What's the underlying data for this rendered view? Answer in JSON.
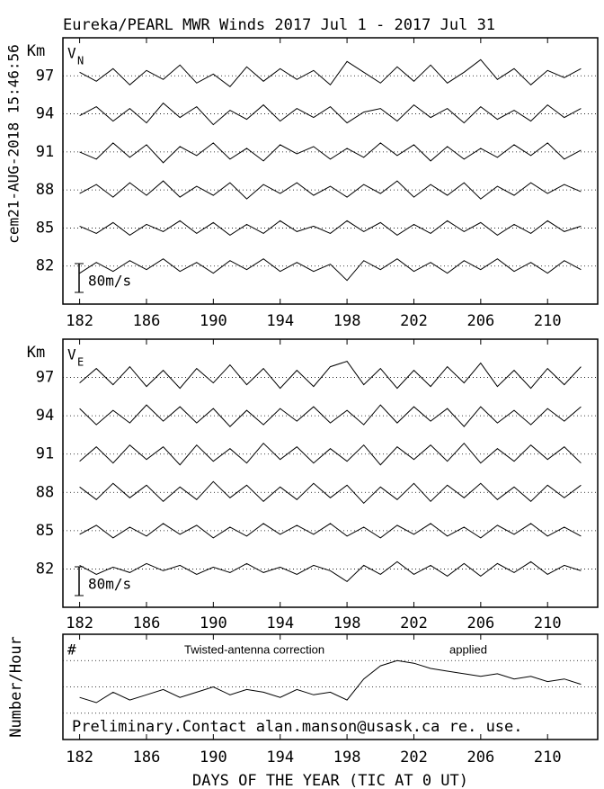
{
  "chart_data": [
    {
      "type": "line",
      "title": "Eureka/PEARL MWR Winds 2017 Jul  1 - 2017 Jul 31",
      "side_label": "cem21-AUG-2018 15:46:56",
      "ylabel": "Km",
      "label": "V",
      "label_sub": "N",
      "scale_bar": {
        "value": 80,
        "label": "80m/s"
      },
      "xlim": [
        181,
        213
      ],
      "xticks": [
        182,
        186,
        190,
        194,
        198,
        202,
        206,
        210
      ],
      "ylim": [
        79,
        100
      ],
      "yticks": [
        82,
        85,
        88,
        91,
        94,
        97
      ],
      "grid": true,
      "x": [
        182,
        183,
        184,
        185,
        186,
        187,
        188,
        189,
        190,
        191,
        192,
        193,
        194,
        195,
        196,
        197,
        198,
        199,
        200,
        201,
        202,
        203,
        204,
        205,
        206,
        207,
        208,
        209,
        210,
        211,
        212
      ],
      "series": [
        {
          "altitude": 97,
          "color": "#000000",
          "values": [
            10,
            -15,
            20,
            -25,
            15,
            -10,
            30,
            -20,
            5,
            -30,
            25,
            -15,
            20,
            -10,
            15,
            -25,
            40,
            10,
            -20,
            25,
            -15,
            30,
            -20,
            10,
            45,
            -10,
            20,
            -25,
            15,
            -5,
            20
          ]
        },
        {
          "altitude": 94,
          "color": "#000000",
          "values": [
            -5,
            20,
            -20,
            15,
            -25,
            30,
            -10,
            20,
            -30,
            10,
            -15,
            25,
            -20,
            15,
            -10,
            20,
            -25,
            5,
            15,
            -20,
            25,
            -10,
            15,
            -25,
            20,
            -15,
            10,
            -20,
            25,
            -10,
            15
          ]
        },
        {
          "altitude": 91,
          "color": "#000000",
          "values": [
            0,
            -20,
            25,
            -15,
            20,
            -30,
            15,
            -10,
            25,
            -20,
            10,
            -25,
            20,
            -5,
            15,
            -20,
            10,
            -15,
            25,
            -10,
            20,
            -25,
            15,
            -20,
            10,
            -15,
            20,
            -10,
            25,
            -20,
            5
          ]
        },
        {
          "altitude": 88,
          "color": "#000000",
          "values": [
            -10,
            15,
            -20,
            20,
            -15,
            25,
            -20,
            10,
            -15,
            20,
            -25,
            15,
            -10,
            20,
            -15,
            10,
            -20,
            15,
            -10,
            25,
            -20,
            15,
            -15,
            20,
            -25,
            10,
            -15,
            20,
            -10,
            15,
            -5
          ]
        },
        {
          "altitude": 85,
          "color": "#000000",
          "values": [
            5,
            -15,
            15,
            -20,
            10,
            -10,
            20,
            -15,
            15,
            -20,
            10,
            -15,
            20,
            -10,
            5,
            -15,
            20,
            -10,
            15,
            -20,
            10,
            -15,
            20,
            -10,
            15,
            -20,
            10,
            -15,
            20,
            -10,
            5
          ]
        },
        {
          "altitude": 82,
          "color": "#000000",
          "values": [
            -20,
            10,
            -15,
            15,
            -10,
            20,
            -15,
            10,
            -20,
            15,
            -10,
            20,
            -15,
            10,
            -15,
            5,
            -40,
            15,
            -10,
            20,
            -15,
            10,
            -20,
            15,
            -10,
            20,
            -15,
            10,
            -20,
            15,
            -10
          ]
        }
      ]
    },
    {
      "type": "line",
      "ylabel": "Km",
      "label": "V",
      "label_sub": "E",
      "scale_bar": {
        "value": 80,
        "label": "80m/s"
      },
      "xlim": [
        181,
        213
      ],
      "xticks": [
        182,
        186,
        190,
        194,
        198,
        202,
        206,
        210
      ],
      "ylim": [
        79,
        100
      ],
      "yticks": [
        82,
        85,
        88,
        91,
        94,
        97
      ],
      "grid": true,
      "x": [
        182,
        183,
        184,
        185,
        186,
        187,
        188,
        189,
        190,
        191,
        192,
        193,
        194,
        195,
        196,
        197,
        198,
        199,
        200,
        201,
        202,
        203,
        204,
        205,
        206,
        207,
        208,
        209,
        210,
        211,
        212
      ],
      "series": [
        {
          "altitude": 97,
          "color": "#000000",
          "values": [
            -15,
            25,
            -20,
            30,
            -25,
            20,
            -30,
            25,
            -15,
            35,
            -20,
            25,
            -30,
            20,
            -25,
            30,
            45,
            -20,
            25,
            -30,
            20,
            -25,
            30,
            -15,
            40,
            -25,
            20,
            -30,
            25,
            -20,
            30
          ]
        },
        {
          "altitude": 94,
          "color": "#000000",
          "values": [
            20,
            -25,
            15,
            -20,
            30,
            -15,
            25,
            -20,
            20,
            -30,
            15,
            -25,
            20,
            -15,
            25,
            -20,
            15,
            -25,
            30,
            -20,
            25,
            -15,
            20,
            -30,
            25,
            -20,
            15,
            -25,
            20,
            -15,
            25
          ]
        },
        {
          "altitude": 91,
          "color": "#000000",
          "values": [
            -20,
            20,
            -25,
            25,
            -15,
            20,
            -30,
            25,
            -20,
            15,
            -25,
            30,
            -15,
            20,
            -25,
            15,
            -20,
            25,
            -30,
            20,
            -15,
            25,
            -20,
            30,
            -25,
            15,
            -20,
            25,
            -15,
            20,
            -25
          ]
        },
        {
          "altitude": 88,
          "color": "#000000",
          "values": [
            15,
            -20,
            25,
            -15,
            20,
            -25,
            15,
            -20,
            30,
            -15,
            20,
            -25,
            15,
            -20,
            25,
            -15,
            20,
            -30,
            15,
            -20,
            25,
            -25,
            20,
            -15,
            25,
            -20,
            15,
            -25,
            20,
            -15,
            20
          ]
        },
        {
          "altitude": 85,
          "color": "#000000",
          "values": [
            -10,
            15,
            -20,
            10,
            -15,
            20,
            -10,
            15,
            -20,
            10,
            -15,
            20,
            -10,
            15,
            -10,
            20,
            -15,
            10,
            -20,
            15,
            -10,
            20,
            -15,
            10,
            -20,
            15,
            -10,
            20,
            -15,
            10,
            -15
          ]
        },
        {
          "altitude": 82,
          "color": "#000000",
          "values": [
            10,
            -15,
            5,
            -10,
            15,
            -5,
            10,
            -15,
            5,
            -10,
            15,
            -10,
            5,
            -15,
            10,
            -5,
            -35,
            10,
            -15,
            20,
            -15,
            10,
            -20,
            15,
            -20,
            15,
            -10,
            20,
            -15,
            10,
            -5
          ]
        }
      ]
    },
    {
      "type": "line",
      "ylabel": "Number/Hour",
      "label": "#",
      "annotations": [
        "Twisted-antenna correction",
        "applied"
      ],
      "note": "Preliminary.Contact alan.manson@usask.ca re. use.",
      "xlabel": "DAYS OF THE YEAR (TIC AT 0 UT)",
      "xlim": [
        181,
        213
      ],
      "xticks": [
        182,
        186,
        190,
        194,
        198,
        202,
        206,
        210
      ],
      "ylim": [
        0,
        4
      ],
      "gridlines": [
        1,
        2,
        3
      ],
      "x": [
        182,
        183,
        184,
        185,
        186,
        187,
        188,
        189,
        190,
        191,
        192,
        193,
        194,
        195,
        196,
        197,
        198,
        199,
        200,
        201,
        202,
        203,
        204,
        205,
        206,
        207,
        208,
        209,
        210,
        211,
        212
      ],
      "series": [
        {
          "color": "#000000",
          "values": [
            1.6,
            1.4,
            1.8,
            1.5,
            1.7,
            1.9,
            1.6,
            1.8,
            2.0,
            1.7,
            1.9,
            1.8,
            1.6,
            1.9,
            1.7,
            1.8,
            1.5,
            2.3,
            2.8,
            3.0,
            2.9,
            2.7,
            2.6,
            2.5,
            2.4,
            2.5,
            2.3,
            2.4,
            2.2,
            2.3,
            2.1
          ]
        }
      ]
    }
  ]
}
